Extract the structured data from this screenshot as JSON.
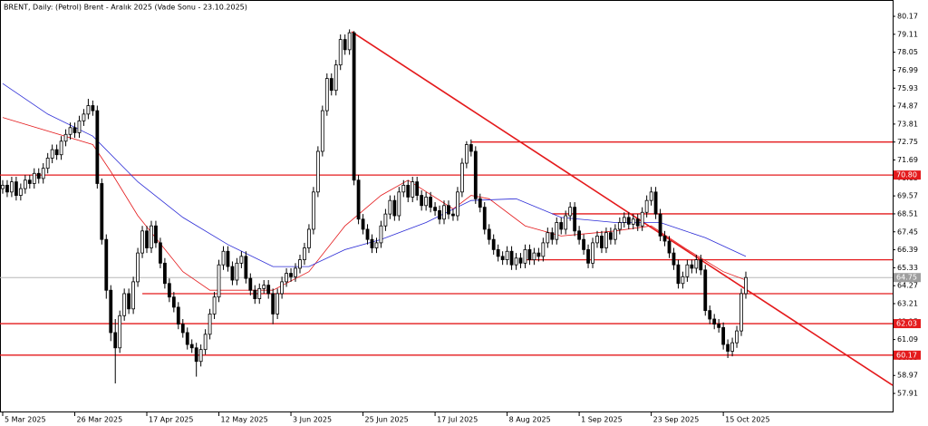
{
  "chart_data": {
    "type": "candlestick",
    "title": "BRENT, Daily:  (Petrol) Brent - Aralık 2025 (Vade Sonu - 23.10.2025)",
    "open": [
      70.0,
      70.2,
      69.8,
      70.4,
      69.6,
      70.0,
      70.5,
      70.3,
      70.9,
      70.6,
      71.2,
      71.8,
      72.3,
      72.0,
      72.8,
      73.2,
      73.6,
      73.3,
      74.0,
      74.4,
      74.9,
      74.6,
      70.3,
      67.0,
      64.0,
      61.5,
      60.6,
      62.5,
      63.8,
      62.9,
      64.5,
      66.2,
      67.5,
      66.5,
      67.8,
      66.8,
      65.6,
      64.4,
      63.6,
      63.0,
      62.0,
      61.5,
      60.8,
      60.6,
      59.8,
      60.5,
      61.4,
      62.6,
      63.6,
      65.5,
      66.3,
      65.4,
      64.6,
      65.6,
      66.0,
      64.7,
      64.0,
      63.5,
      64.1,
      64.3,
      63.8,
      62.6,
      63.8,
      64.5,
      65.0,
      64.8,
      65.3,
      65.8,
      66.5,
      67.6,
      69.8,
      72.2,
      74.6,
      76.5,
      75.8,
      77.3,
      78.8,
      78.2,
      79.2,
      70.5,
      68.2,
      67.6,
      67.0,
      66.5,
      66.8,
      67.8,
      68.5,
      69.3,
      68.4,
      69.8,
      70.2,
      69.5,
      70.4,
      69.6,
      69.0,
      69.5,
      68.9,
      68.7,
      68.2,
      69.0,
      68.5,
      68.4,
      69.8,
      71.5,
      72.6,
      72.2,
      69.4,
      68.9,
      67.6,
      67.0,
      66.4,
      66.0,
      65.8,
      66.3,
      65.5,
      65.9,
      65.6,
      66.4,
      65.8,
      66.2,
      66.0,
      66.8,
      67.4,
      67.0,
      68.0,
      67.6,
      68.4,
      68.9,
      67.5,
      67.0,
      66.4,
      65.6,
      66.8,
      67.2,
      66.5,
      67.4,
      67.0,
      67.6,
      68.0,
      68.3,
      67.9,
      68.2,
      67.8,
      68.6,
      69.3,
      69.8,
      68.5,
      67.2,
      66.9,
      66.2,
      65.5,
      64.4,
      64.8,
      65.5,
      65.3,
      65.8,
      65.2,
      62.8,
      62.3,
      62.0,
      61.8,
      60.8,
      60.4,
      60.9,
      61.6,
      63.8
    ],
    "high": [
      70.5,
      70.5,
      70.7,
      70.7,
      70.3,
      70.8,
      70.8,
      71.2,
      71.2,
      71.5,
      72.1,
      72.6,
      72.6,
      73.1,
      73.5,
      73.9,
      73.9,
      74.3,
      74.7,
      75.3,
      75.2,
      74.9,
      70.6,
      67.3,
      64.3,
      62.3,
      62.8,
      64.1,
      64.1,
      64.8,
      66.5,
      67.8,
      67.8,
      68.1,
      68.1,
      67.1,
      65.9,
      64.7,
      63.9,
      63.3,
      62.3,
      61.8,
      61.1,
      60.9,
      60.8,
      61.7,
      62.9,
      63.9,
      65.8,
      66.6,
      66.6,
      65.7,
      65.9,
      66.3,
      66.3,
      65.0,
      64.3,
      64.4,
      64.6,
      64.6,
      64.1,
      64.1,
      64.8,
      65.3,
      65.3,
      65.6,
      66.1,
      66.8,
      67.9,
      70.1,
      72.5,
      74.9,
      76.8,
      76.8,
      77.6,
      79.1,
      79.1,
      79.4,
      79.3,
      70.8,
      68.5,
      67.9,
      67.3,
      67.1,
      68.1,
      68.8,
      69.6,
      69.6,
      70.1,
      70.5,
      70.5,
      70.7,
      70.7,
      69.9,
      69.8,
      69.8,
      69.2,
      69.0,
      69.3,
      69.3,
      68.8,
      70.1,
      71.8,
      72.8,
      72.9,
      72.5,
      69.7,
      69.2,
      67.9,
      67.3,
      66.7,
      66.3,
      66.6,
      66.6,
      66.2,
      66.2,
      66.7,
      66.7,
      66.5,
      66.5,
      67.1,
      67.7,
      67.7,
      68.3,
      68.3,
      68.7,
      69.2,
      69.2,
      67.8,
      67.3,
      66.7,
      67.1,
      67.5,
      67.5,
      67.7,
      67.7,
      67.9,
      68.3,
      68.6,
      68.6,
      68.5,
      68.5,
      68.9,
      69.6,
      70.1,
      70.1,
      68.8,
      67.5,
      67.2,
      66.5,
      65.8,
      65.1,
      65.8,
      65.8,
      66.1,
      66.1,
      65.5,
      63.1,
      62.6,
      62.3,
      62.1,
      61.1,
      61.2,
      61.9,
      64.1,
      65.1
    ],
    "low": [
      69.7,
      69.5,
      69.5,
      69.3,
      69.3,
      69.7,
      70.0,
      70.0,
      70.3,
      70.3,
      70.9,
      71.5,
      71.7,
      71.7,
      72.5,
      72.9,
      73.0,
      73.0,
      73.7,
      74.1,
      74.3,
      70.0,
      66.7,
      63.5,
      61.0,
      58.5,
      60.3,
      62.2,
      62.6,
      62.6,
      64.2,
      65.9,
      66.2,
      66.2,
      66.5,
      65.3,
      64.1,
      63.3,
      62.7,
      61.7,
      61.2,
      60.5,
      60.3,
      58.9,
      59.5,
      60.2,
      61.1,
      62.3,
      63.3,
      65.2,
      65.1,
      64.3,
      64.3,
      65.3,
      64.4,
      63.7,
      63.2,
      63.2,
      63.8,
      63.5,
      62.0,
      62.3,
      63.5,
      64.2,
      64.5,
      64.5,
      65.0,
      65.5,
      66.2,
      67.3,
      69.5,
      71.9,
      74.3,
      75.5,
      75.5,
      77.0,
      77.9,
      77.9,
      70.2,
      67.9,
      67.3,
      66.7,
      66.2,
      66.2,
      66.5,
      67.5,
      68.2,
      68.1,
      68.1,
      69.5,
      69.2,
      69.2,
      69.3,
      68.7,
      68.7,
      68.6,
      68.4,
      67.9,
      67.9,
      68.2,
      68.1,
      68.1,
      69.5,
      71.2,
      71.9,
      69.1,
      68.6,
      67.3,
      66.7,
      66.1,
      65.7,
      65.5,
      65.5,
      65.2,
      65.2,
      65.3,
      65.3,
      65.5,
      65.5,
      65.7,
      65.7,
      66.5,
      66.7,
      66.7,
      67.3,
      67.3,
      68.1,
      67.2,
      66.7,
      66.1,
      65.3,
      65.3,
      66.5,
      66.2,
      66.2,
      66.7,
      66.7,
      67.3,
      67.7,
      67.6,
      67.6,
      67.5,
      67.5,
      68.3,
      69.0,
      68.2,
      66.9,
      66.6,
      65.9,
      65.2,
      64.1,
      64.1,
      64.5,
      65.0,
      65.0,
      64.9,
      62.5,
      62.0,
      61.7,
      61.5,
      60.5,
      60.0,
      60.1,
      60.6,
      61.3,
      63.5
    ],
    "close": [
      70.2,
      69.8,
      70.4,
      69.6,
      70.0,
      70.5,
      70.3,
      70.9,
      70.6,
      71.2,
      71.8,
      72.3,
      72.0,
      72.8,
      73.2,
      73.6,
      73.3,
      74.0,
      74.4,
      74.9,
      74.6,
      70.3,
      67.0,
      64.0,
      61.5,
      60.6,
      62.5,
      63.8,
      62.9,
      64.5,
      66.2,
      67.5,
      66.5,
      67.8,
      66.8,
      65.6,
      64.4,
      63.6,
      63.0,
      62.0,
      61.5,
      60.8,
      60.6,
      59.8,
      60.5,
      61.4,
      62.6,
      63.6,
      65.5,
      66.3,
      65.4,
      64.6,
      65.6,
      66.0,
      64.7,
      64.0,
      63.5,
      64.1,
      64.3,
      63.8,
      62.6,
      63.8,
      64.5,
      65.0,
      64.8,
      65.3,
      65.8,
      66.5,
      67.6,
      69.8,
      72.2,
      74.6,
      76.5,
      75.8,
      77.3,
      78.8,
      78.2,
      79.2,
      70.5,
      68.2,
      67.6,
      67.0,
      66.5,
      66.8,
      67.8,
      68.5,
      69.3,
      68.4,
      69.8,
      70.2,
      69.5,
      70.4,
      69.6,
      69.0,
      69.5,
      68.9,
      68.7,
      68.2,
      69.0,
      68.5,
      68.4,
      69.8,
      71.5,
      72.6,
      72.2,
      69.4,
      68.9,
      67.6,
      67.0,
      66.4,
      66.0,
      65.8,
      66.3,
      65.5,
      65.9,
      65.6,
      66.4,
      65.8,
      66.2,
      66.0,
      66.8,
      67.4,
      67.0,
      68.0,
      67.6,
      68.4,
      68.9,
      67.5,
      67.0,
      66.4,
      65.6,
      66.8,
      67.2,
      66.5,
      67.4,
      67.0,
      67.6,
      68.0,
      68.3,
      67.9,
      68.2,
      67.8,
      68.6,
      69.3,
      69.8,
      68.5,
      67.2,
      66.9,
      66.2,
      65.5,
      64.4,
      64.8,
      65.5,
      65.3,
      65.8,
      65.2,
      62.8,
      62.3,
      62.0,
      61.8,
      60.8,
      60.4,
      60.9,
      61.6,
      63.8,
      64.75
    ],
    "moving_averages": [
      {
        "color": "#e41a1c",
        "x": [
          0,
          20,
          24,
          30,
          40,
          46,
          60,
          68,
          76,
          84,
          90,
          100,
          104,
          108,
          116,
          124,
          136,
          144,
          152,
          160,
          165
        ],
        "values": [
          74.2,
          72.6,
          71.0,
          68.4,
          65.1,
          64.0,
          64.0,
          65.1,
          67.8,
          69.6,
          70.5,
          68.8,
          69.6,
          69.4,
          67.8,
          67.2,
          67.5,
          67.8,
          66.4,
          65.1,
          64.6
        ]
      },
      {
        "color": "#2b2bd6",
        "x": [
          0,
          10,
          20,
          30,
          40,
          50,
          60,
          68,
          76,
          84,
          94,
          104,
          114,
          124,
          136,
          146,
          156,
          165
        ],
        "values": [
          76.2,
          74.4,
          73.1,
          70.4,
          68.3,
          66.7,
          65.4,
          65.4,
          66.4,
          67.0,
          68.0,
          69.3,
          69.4,
          68.3,
          68.0,
          68.0,
          67.1,
          66.0
        ]
      }
    ],
    "trendline": {
      "color": "#e41a1c",
      "x": [
        77.5,
        197.6
      ],
      "values": [
        79.26,
        58.39
      ]
    },
    "levels": [
      {
        "value": 72.75,
        "start": 104
      },
      {
        "value": 70.8,
        "label": "70.80"
      },
      {
        "value": 68.51,
        "start": 122
      },
      {
        "value": 65.8,
        "start": 116
      },
      {
        "value": 63.8,
        "start": 31
      },
      {
        "value": 62.03,
        "label": "62.03"
      },
      {
        "value": 60.17,
        "label": "60.17"
      }
    ],
    "level_color": "#e41a1c",
    "last_price": 64.75,
    "xlim": [
      -0.6,
      197.6
    ],
    "ylim": [
      56.95,
      80.92
    ],
    "yticks": [
      80.17,
      79.11,
      78.05,
      76.99,
      75.93,
      74.87,
      73.81,
      72.75,
      71.69,
      70.63,
      69.57,
      68.51,
      67.45,
      66.39,
      65.33,
      64.27,
      63.21,
      62.15,
      61.09,
      60.03,
      58.97,
      57.91
    ],
    "xticks": [
      {
        "value": 0,
        "label": "5 Mar 2025"
      },
      {
        "value": 16,
        "label": "26 Mar 2025"
      },
      {
        "value": 32,
        "label": "17 Apr 2025"
      },
      {
        "value": 48,
        "label": "12 May 2025"
      },
      {
        "value": 64,
        "label": "3 Jun 2025"
      },
      {
        "value": 80,
        "label": "25 Jun 2025"
      },
      {
        "value": 96,
        "label": "17 Jul 2025"
      },
      {
        "value": 112,
        "label": "8 Aug 2025"
      },
      {
        "value": 128,
        "label": "1 Sep 2025"
      },
      {
        "value": 144,
        "label": "23 Sep 2025"
      },
      {
        "value": 160,
        "label": "15 Oct 2025"
      }
    ]
  }
}
